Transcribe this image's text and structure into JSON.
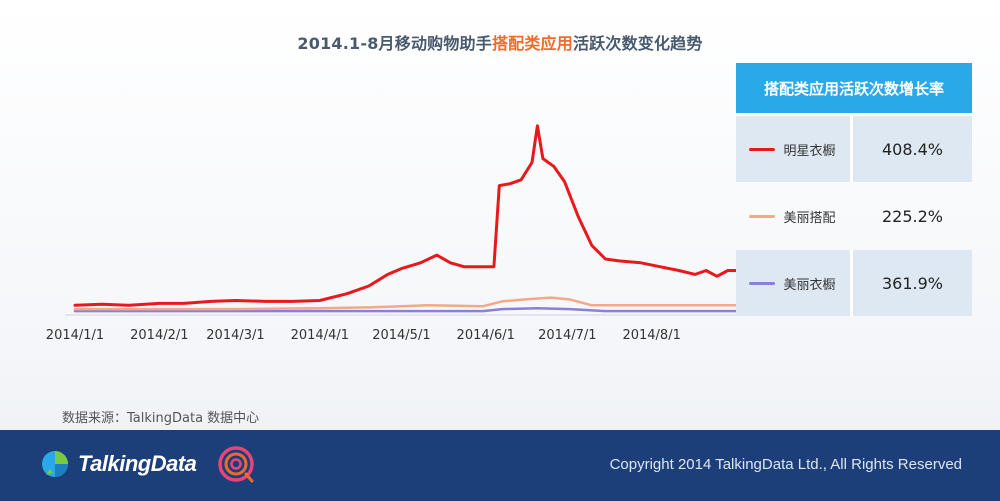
{
  "title": {
    "prefix": "2014.1-8月移动购物助手",
    "highlight": "搭配类应用",
    "suffix": "活跃次数变化趋势"
  },
  "colors": {
    "accent_orange": "#f26a2a",
    "header_blue": "#2aa9e8",
    "footer_navy": "#1c3f7a"
  },
  "growth_table": {
    "header": "搭配类应用活跃次数增长率",
    "rows": [
      {
        "name": "明星衣橱",
        "value": "408.4%",
        "color": "#e8191c"
      },
      {
        "name": "美丽搭配",
        "value": "225.2%",
        "color": "#f2a98a"
      },
      {
        "name": "美丽衣橱",
        "value": "361.9%",
        "color": "#8b7fd8"
      }
    ]
  },
  "source": "数据来源：TalkingData 数据中心",
  "footer": {
    "logo_text": "TalkingData",
    "copyright": "Copyright 2014 TalkingData Ltd., All Rights Reserved"
  },
  "chart_data": {
    "type": "line",
    "title": "2014.1-8月移动购物助手搭配类应用活跃次数变化趋势",
    "x_tick_labels": [
      "2014/1/1",
      "2014/2/1",
      "2014/3/1",
      "2014/4/1",
      "2014/5/1",
      "2014/6/1",
      "2014/7/1",
      "2014/8/1"
    ],
    "x_ticks_day": [
      0,
      31,
      59,
      90,
      120,
      151,
      181,
      212
    ],
    "x_range_day": [
      0,
      243
    ],
    "y_range": [
      0,
      100
    ],
    "y_axis_visible": false,
    "grid": false,
    "series": [
      {
        "name": "明星衣橱",
        "color": "#e8191c",
        "points": [
          [
            0,
            4
          ],
          [
            10,
            4.5
          ],
          [
            20,
            4
          ],
          [
            31,
            5
          ],
          [
            40,
            5
          ],
          [
            50,
            6
          ],
          [
            59,
            6.5
          ],
          [
            70,
            6
          ],
          [
            80,
            6
          ],
          [
            90,
            6.5
          ],
          [
            100,
            10
          ],
          [
            108,
            14
          ],
          [
            115,
            20
          ],
          [
            120,
            23
          ],
          [
            127,
            26
          ],
          [
            133,
            30
          ],
          [
            138,
            26
          ],
          [
            143,
            24
          ],
          [
            148,
            24
          ],
          [
            154,
            24
          ],
          [
            156,
            66
          ],
          [
            160,
            67
          ],
          [
            164,
            69
          ],
          [
            168,
            78
          ],
          [
            170,
            97
          ],
          [
            172,
            80
          ],
          [
            176,
            76
          ],
          [
            180,
            68
          ],
          [
            185,
            50
          ],
          [
            190,
            35
          ],
          [
            195,
            28
          ],
          [
            200,
            27
          ],
          [
            208,
            26
          ],
          [
            215,
            24
          ],
          [
            222,
            22
          ],
          [
            228,
            20
          ],
          [
            232,
            22
          ],
          [
            236,
            19
          ],
          [
            240,
            22
          ],
          [
            243,
            22
          ]
        ]
      },
      {
        "name": "美丽搭配",
        "color": "#f2a98a",
        "points": [
          [
            0,
            2
          ],
          [
            31,
            2
          ],
          [
            59,
            2
          ],
          [
            90,
            2.5
          ],
          [
            110,
            3
          ],
          [
            130,
            4
          ],
          [
            150,
            3.5
          ],
          [
            157,
            6
          ],
          [
            165,
            7
          ],
          [
            175,
            8
          ],
          [
            182,
            7
          ],
          [
            190,
            4
          ],
          [
            212,
            4
          ],
          [
            243,
            4
          ]
        ]
      },
      {
        "name": "美丽衣橱",
        "color": "#8b7fd8",
        "points": [
          [
            0,
            1
          ],
          [
            59,
            1
          ],
          [
            120,
            1
          ],
          [
            150,
            1
          ],
          [
            157,
            2
          ],
          [
            170,
            2.5
          ],
          [
            182,
            2
          ],
          [
            195,
            1
          ],
          [
            243,
            1
          ]
        ]
      }
    ]
  }
}
